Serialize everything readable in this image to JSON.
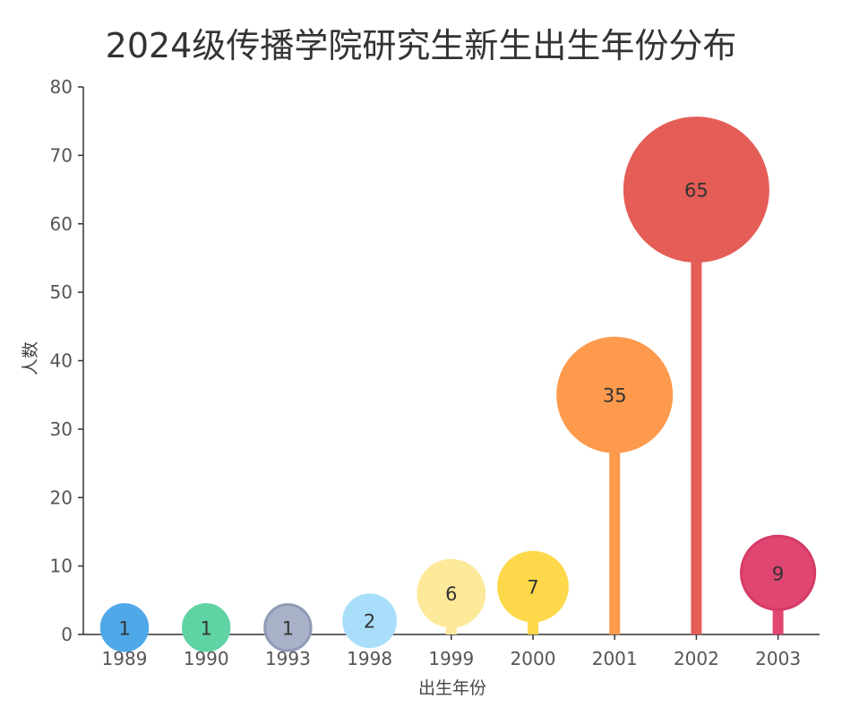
{
  "chart_data": {
    "type": "lollipop",
    "title": "2024级传播学院研究生新生出生年份分布",
    "xlabel": "出生年份",
    "ylabel": "人数",
    "ylim": [
      0,
      80
    ],
    "yticks": [
      0,
      10,
      20,
      30,
      40,
      50,
      60,
      70,
      80
    ],
    "grid": false,
    "categories": [
      "1989",
      "1990",
      "1993",
      "1998",
      "1999",
      "2000",
      "2001",
      "2002",
      "2003"
    ],
    "values": [
      1,
      1,
      1,
      2,
      6,
      7,
      35,
      65,
      9
    ],
    "colors": [
      "#4fa8e8",
      "#5fd3a4",
      "#a9b2c9",
      "#a9defa",
      "#fde99a",
      "#fdd84a",
      "#fd9a4d",
      "#e45d56",
      "#e04672"
    ],
    "outline_colors": [
      "#4fa8e8",
      "#5fd3a4",
      "#8f9ab5",
      "#a9defa",
      "#fde99a",
      "#fdd84a",
      "#fd9a4d",
      "#e45d56",
      "#d63a66"
    ]
  }
}
